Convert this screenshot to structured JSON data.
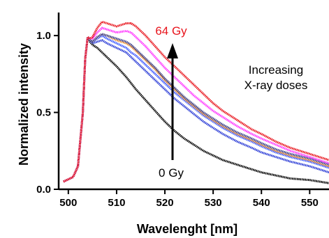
{
  "chart_data": {
    "type": "line",
    "title": "",
    "xlabel": "Wavelenght [nm]",
    "ylabel": "Normalized intensity",
    "xlim": [
      498,
      554
    ],
    "ylim": [
      0,
      1.15
    ],
    "xticks": [
      500,
      510,
      520,
      530,
      540,
      550
    ],
    "yticks": [
      0.0,
      0.5,
      1.0
    ],
    "xtick_labels": [
      "500",
      "510",
      "520",
      "530",
      "540",
      "550"
    ],
    "ytick_labels": [
      "0.0",
      "0.5",
      "1.0"
    ],
    "grid": false,
    "x": [
      499,
      501,
      502,
      503,
      503.5,
      504,
      504.5,
      505,
      506,
      507,
      508,
      510,
      512,
      513,
      514,
      516,
      518,
      520,
      522,
      524,
      526,
      528,
      530,
      532,
      535,
      538,
      540,
      543,
      546,
      550,
      554
    ],
    "series": [
      {
        "color": "#000000",
        "values": [
          0.05,
          0.08,
          0.15,
          0.5,
          0.85,
          0.99,
          0.96,
          0.94,
          0.92,
          0.89,
          0.86,
          0.8,
          0.73,
          0.69,
          0.65,
          0.58,
          0.51,
          0.44,
          0.38,
          0.33,
          0.29,
          0.25,
          0.22,
          0.19,
          0.16,
          0.13,
          0.11,
          0.09,
          0.07,
          0.06,
          0.04
        ]
      },
      {
        "color": "#2a3bd6",
        "values": [
          0.05,
          0.08,
          0.15,
          0.5,
          0.85,
          0.99,
          0.97,
          0.95,
          0.96,
          0.97,
          0.95,
          0.92,
          0.89,
          0.86,
          0.83,
          0.77,
          0.71,
          0.65,
          0.59,
          0.54,
          0.49,
          0.44,
          0.4,
          0.36,
          0.31,
          0.27,
          0.24,
          0.21,
          0.18,
          0.15,
          0.11
        ]
      },
      {
        "color": "#3b58ff",
        "values": [
          0.05,
          0.08,
          0.15,
          0.5,
          0.85,
          0.99,
          0.97,
          0.96,
          0.98,
          1.0,
          0.98,
          0.95,
          0.92,
          0.89,
          0.87,
          0.81,
          0.75,
          0.69,
          0.63,
          0.58,
          0.53,
          0.48,
          0.44,
          0.4,
          0.35,
          0.31,
          0.28,
          0.24,
          0.21,
          0.18,
          0.14
        ]
      },
      {
        "color": "#f08a24",
        "values": [
          0.05,
          0.08,
          0.15,
          0.5,
          0.85,
          0.99,
          0.97,
          0.96,
          0.99,
          1.01,
          1.0,
          0.97,
          0.95,
          0.93,
          0.9,
          0.84,
          0.78,
          0.71,
          0.65,
          0.59,
          0.54,
          0.49,
          0.45,
          0.41,
          0.36,
          0.32,
          0.29,
          0.25,
          0.22,
          0.19,
          0.15
        ]
      },
      {
        "color": "#3a3f8c",
        "values": [
          0.05,
          0.08,
          0.15,
          0.5,
          0.85,
          0.99,
          0.97,
          0.96,
          0.99,
          1.01,
          1.0,
          0.98,
          0.96,
          0.94,
          0.91,
          0.85,
          0.79,
          0.72,
          0.66,
          0.6,
          0.55,
          0.5,
          0.46,
          0.42,
          0.37,
          0.33,
          0.3,
          0.26,
          0.23,
          0.2,
          0.16
        ]
      },
      {
        "color": "#ff33ff",
        "values": [
          0.05,
          0.08,
          0.15,
          0.5,
          0.85,
          0.99,
          0.98,
          0.98,
          1.02,
          1.05,
          1.04,
          1.02,
          1.03,
          1.02,
          0.99,
          0.93,
          0.86,
          0.79,
          0.73,
          0.67,
          0.61,
          0.56,
          0.51,
          0.47,
          0.41,
          0.36,
          0.33,
          0.29,
          0.25,
          0.21,
          0.17
        ]
      },
      {
        "color": "#e8141c",
        "values": [
          0.05,
          0.08,
          0.15,
          0.5,
          0.85,
          0.99,
          0.98,
          0.99,
          1.05,
          1.09,
          1.08,
          1.06,
          1.08,
          1.08,
          1.06,
          1.0,
          0.93,
          0.86,
          0.8,
          0.74,
          0.68,
          0.62,
          0.56,
          0.51,
          0.45,
          0.39,
          0.36,
          0.31,
          0.27,
          0.23,
          0.19
        ]
      }
    ],
    "annotations": {
      "top_label": "64 Gy",
      "top_label_color": "#e8141c",
      "bottom_label": "0 Gy",
      "arrow_color": "#000000",
      "note_line1": "Increasing",
      "note_line2": "X-ray doses"
    }
  }
}
